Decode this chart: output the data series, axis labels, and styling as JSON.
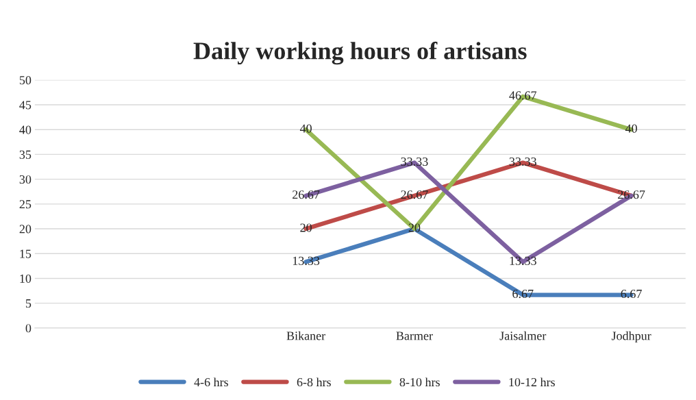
{
  "chart_data": {
    "type": "line",
    "title": "Daily working hours of artisans",
    "categories": [
      null,
      null,
      "Bikaner",
      "Barmer",
      "Jaisalmer",
      "Jodhpur"
    ],
    "series": [
      {
        "name": "4-6 hrs",
        "color": "#4a7ebb",
        "values": [
          null,
          null,
          13.33,
          20,
          6.67,
          6.67
        ],
        "value_labels": [
          null,
          null,
          "13.33",
          "20",
          "6.67",
          "6.67"
        ]
      },
      {
        "name": "6-8 hrs",
        "color": "#be4b48",
        "values": [
          null,
          null,
          20,
          26.67,
          33.33,
          26.67
        ],
        "value_labels": [
          null,
          null,
          "20",
          "26.67",
          "33.33",
          "26.67"
        ]
      },
      {
        "name": "8-10 hrs",
        "color": "#98b954",
        "values": [
          null,
          null,
          40,
          20,
          46.67,
          40
        ],
        "value_labels": [
          null,
          null,
          "40",
          null,
          "46.67",
          "40"
        ]
      },
      {
        "name": "10-12 hrs",
        "color": "#7d60a0",
        "values": [
          null,
          null,
          26.67,
          33.33,
          13.33,
          26.67
        ],
        "value_labels": [
          null,
          null,
          "26.67",
          "33.33",
          "13.33",
          null
        ]
      }
    ],
    "ylim": [
      0,
      50
    ],
    "yticks": [
      0,
      5,
      10,
      15,
      20,
      25,
      30,
      35,
      40,
      45,
      50
    ],
    "grid": "y",
    "legend": "bottom",
    "marker": "none"
  }
}
